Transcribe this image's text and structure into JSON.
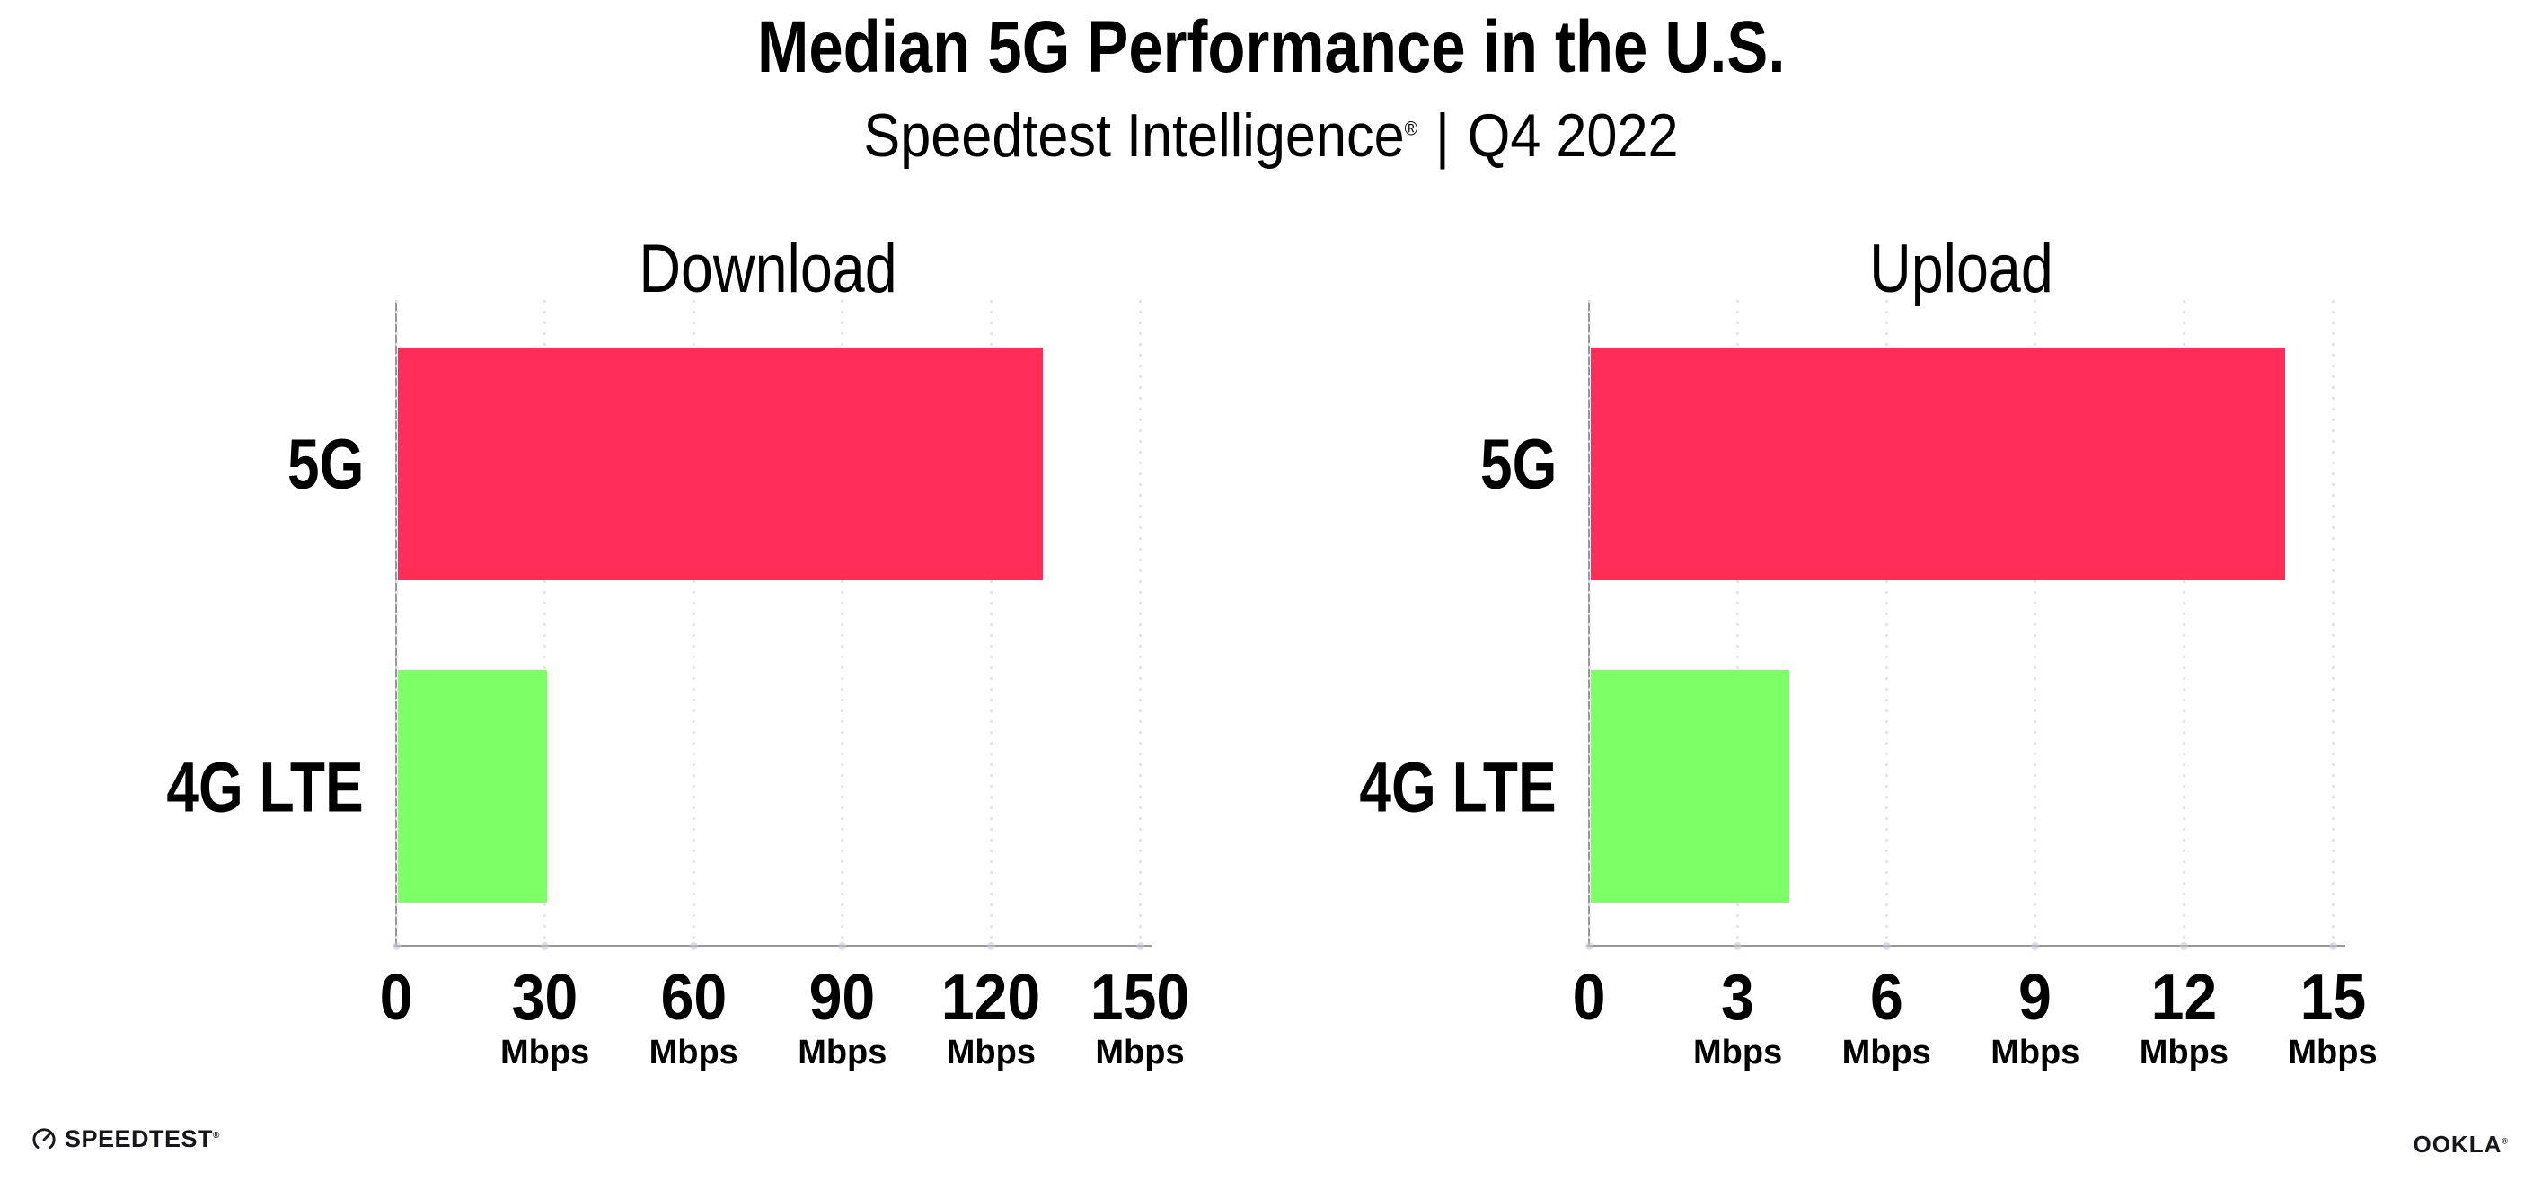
{
  "header": {
    "title": "Median 5G Performance in the U.S.",
    "subtitle_brand": "Speedtest Intelligence",
    "subtitle_reg": "®",
    "subtitle_separator": "|",
    "subtitle_period": "Q4 2022"
  },
  "chart_data": [
    {
      "type": "bar",
      "orientation": "horizontal",
      "title": "Download",
      "categories": [
        "5G",
        "4G LTE"
      ],
      "values": [
        130,
        30
      ],
      "unit": "Mbps",
      "xlim": [
        0,
        150
      ],
      "xticks": [
        0,
        30,
        60,
        90,
        120,
        150
      ],
      "tick_unit": "Mbps",
      "show_unit_on_zero": false,
      "grid": "dotted-vertical",
      "legend": "none",
      "colors": [
        "#FF2D58",
        "#7DFF66"
      ]
    },
    {
      "type": "bar",
      "orientation": "horizontal",
      "title": "Upload",
      "categories": [
        "5G",
        "4G LTE"
      ],
      "values": [
        14,
        4
      ],
      "unit": "Mbps",
      "xlim": [
        0,
        15
      ],
      "xticks": [
        0,
        3,
        6,
        9,
        12,
        15
      ],
      "tick_unit": "Mbps",
      "show_unit_on_zero": false,
      "grid": "dotted-vertical",
      "legend": "none",
      "colors": [
        "#FF2D58",
        "#7DFF66"
      ]
    }
  ],
  "footer": {
    "speedtest_label": "SPEEDTEST",
    "speedtest_reg": "®",
    "ookla_label": "OOKLA",
    "ookla_reg": "®"
  },
  "style": {
    "bar_5g_color": "#FF2D58",
    "bar_4g_lte_color": "#7DFF66",
    "axis_color": "#97979F",
    "grid_color": "#E1E1EC",
    "tick_dot_color": "#C7C7D4",
    "text_color": "#000000",
    "footer_color": "#17161C",
    "background": "#FFFFFF"
  }
}
